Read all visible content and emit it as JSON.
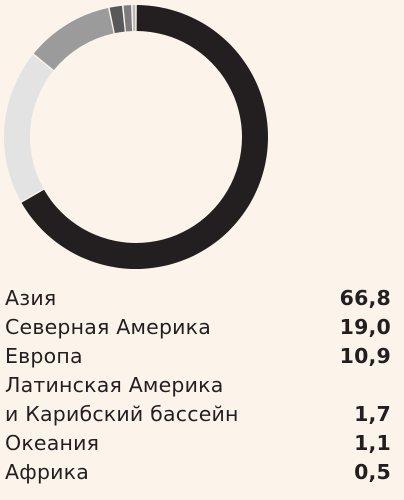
{
  "chart_data": {
    "type": "pie",
    "variant": "donut",
    "categories": [
      "Азия",
      "Северная Америка",
      "Европа",
      "Латинская Америка\nи Карибский бассейн",
      "Океания",
      "Африка"
    ],
    "values": [
      66.8,
      19.0,
      10.9,
      1.7,
      1.1,
      0.5
    ],
    "display_values": [
      "66,8",
      "19,0",
      "10,9",
      "1,7",
      "1,1",
      "0,5"
    ],
    "colors": [
      "#231f20",
      "#e3e3e3",
      "#9b9b9b",
      "#58585a",
      "#7c7c7e",
      "#b9b9b9"
    ],
    "title": "",
    "legend": "below"
  }
}
